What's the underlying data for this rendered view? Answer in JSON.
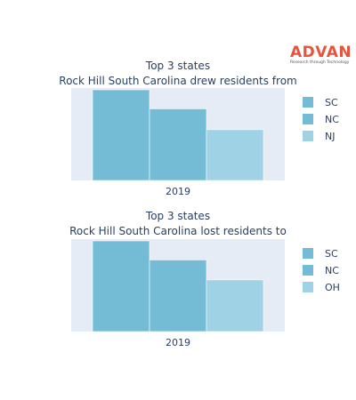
{
  "logo": {
    "word": "ADVAN",
    "tagline": "Research through Technology"
  },
  "chart_data": [
    {
      "type": "bar",
      "title_lines": [
        "Top 3 states",
        "Rock Hill South Carolina drew residents from"
      ],
      "categories": [
        "2019"
      ],
      "series": [
        {
          "name": "SC",
          "values": [
            1.0
          ],
          "color": "#74bcd6"
        },
        {
          "name": "NC",
          "values": [
            0.79
          ],
          "color": "#74bcd6"
        },
        {
          "name": "NJ",
          "values": [
            0.56
          ],
          "color": "#9ed2e4"
        }
      ],
      "ylim": [
        0,
        1.0
      ],
      "grid": false,
      "legend_position": "right"
    },
    {
      "type": "bar",
      "title_lines": [
        "Top 3 states",
        "Rock Hill South Carolina lost residents to"
      ],
      "categories": [
        "2019"
      ],
      "series": [
        {
          "name": "SC",
          "values": [
            1.0
          ],
          "color": "#74bcd6"
        },
        {
          "name": "NC",
          "values": [
            0.79
          ],
          "color": "#74bcd6"
        },
        {
          "name": "OH",
          "values": [
            0.57
          ],
          "color": "#9ed2e4"
        }
      ],
      "ylim": [
        0,
        1.0
      ],
      "grid": false,
      "legend_position": "right"
    }
  ]
}
